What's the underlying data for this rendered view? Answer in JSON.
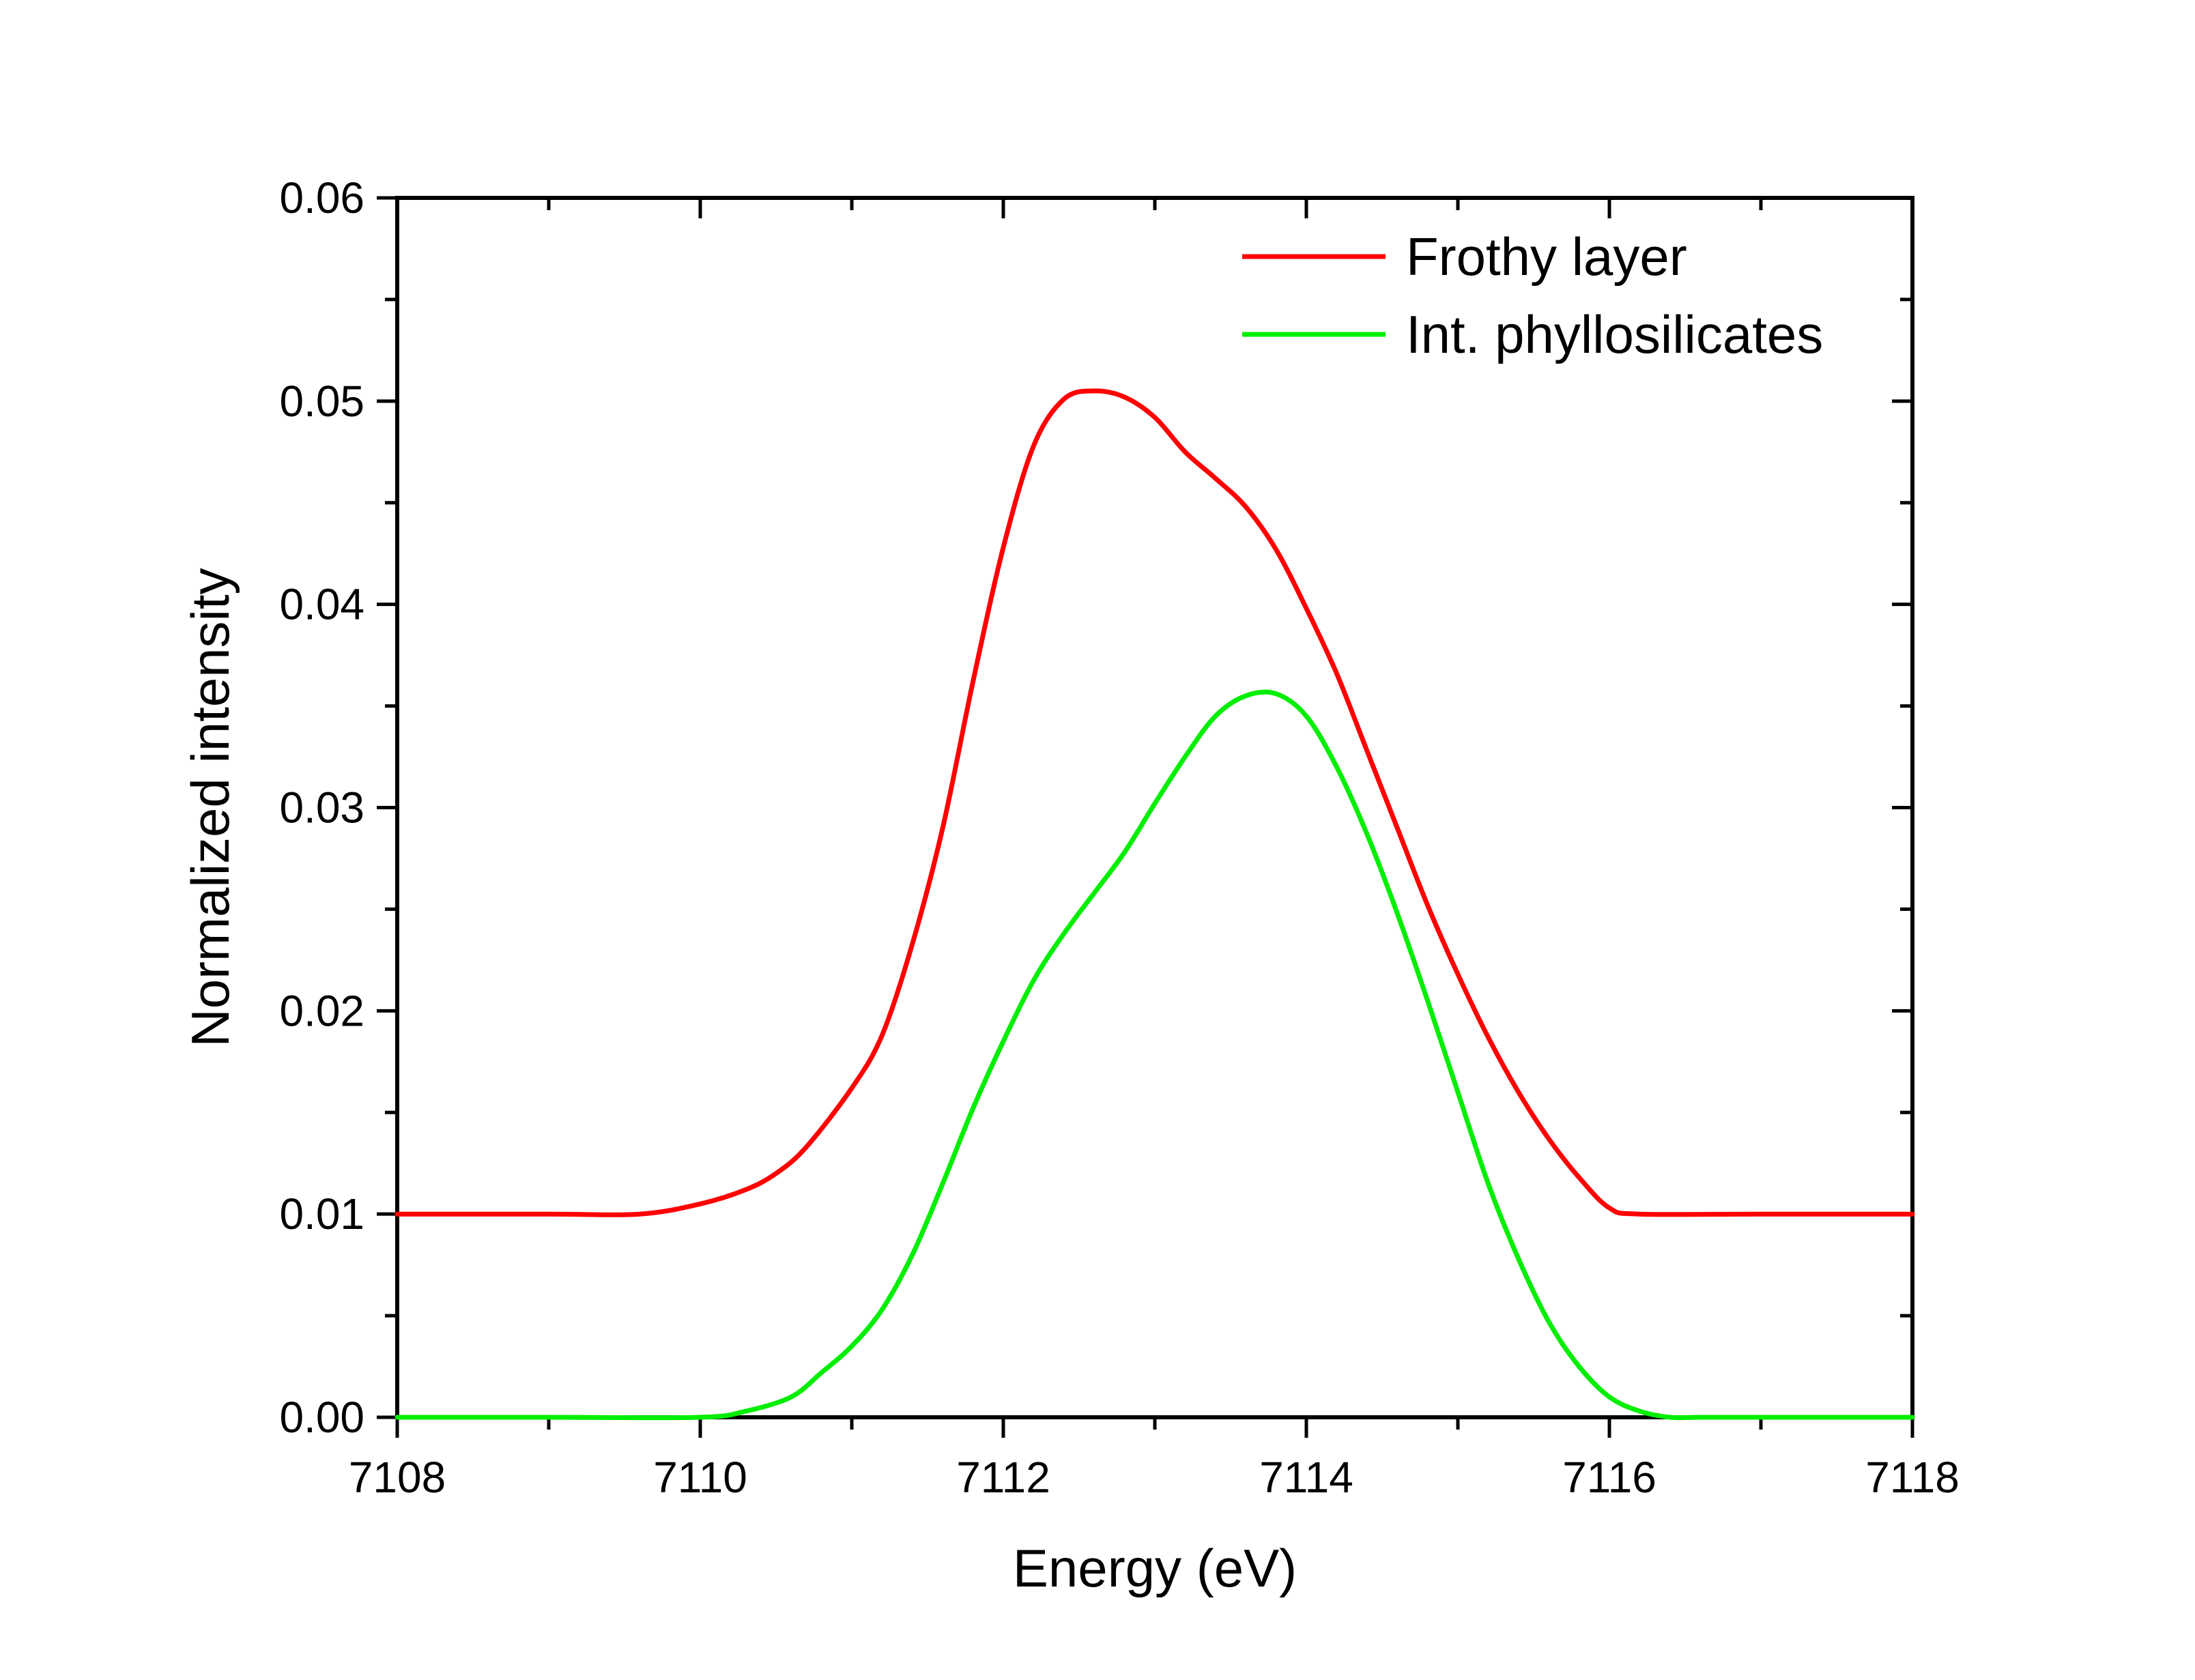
{
  "chart_data": {
    "type": "line",
    "xlabel": "Energy (eV)",
    "ylabel": "Normalized intensity",
    "xlim": [
      7108,
      7118
    ],
    "ylim": [
      0.0,
      0.06
    ],
    "xticks": [
      7108,
      7110,
      7112,
      7114,
      7116,
      7118
    ],
    "xtick_labels": [
      "7108",
      "7110",
      "7112",
      "7114",
      "7116",
      "7118"
    ],
    "yticks": [
      0.0,
      0.01,
      0.02,
      0.03,
      0.04,
      0.05,
      0.06
    ],
    "ytick_labels": [
      "0.00",
      "0.01",
      "0.02",
      "0.03",
      "0.04",
      "0.05",
      "0.06"
    ],
    "grid": false,
    "legend_position": "top-right",
    "series": [
      {
        "name": "Frothy layer",
        "color": "#ff0000",
        "x": [
          7108,
          7109,
          7109.6,
          7110,
          7110.3,
          7110.5,
          7110.7,
          7111,
          7111.2,
          7111.4,
          7111.6,
          7111.8,
          7112,
          7112.2,
          7112.4,
          7112.6,
          7112.8,
          7113,
          7113.2,
          7113.4,
          7113.6,
          7113.8,
          7114,
          7114.2,
          7114.4,
          7114.6,
          7114.8,
          7115,
          7115.2,
          7115.4,
          7115.6,
          7115.8,
          7116,
          7116.2,
          7117,
          7118
        ],
        "y": [
          0.01,
          0.01,
          0.01,
          0.0105,
          0.0112,
          0.012,
          0.0133,
          0.0162,
          0.0188,
          0.0233,
          0.029,
          0.0362,
          0.0428,
          0.0478,
          0.0501,
          0.0505,
          0.0502,
          0.0492,
          0.0475,
          0.0462,
          0.0448,
          0.0427,
          0.0398,
          0.0366,
          0.0328,
          0.029,
          0.0252,
          0.0218,
          0.0187,
          0.016,
          0.0137,
          0.0118,
          0.0103,
          0.01,
          0.01,
          0.01
        ]
      },
      {
        "name": "Int. phyllosilicates",
        "color": "#00ee00",
        "x": [
          7108,
          7109,
          7110,
          7110.3,
          7110.6,
          7110.8,
          7111,
          7111.2,
          7111.4,
          7111.6,
          7111.8,
          7112,
          7112.2,
          7112.4,
          7112.6,
          7112.8,
          7113,
          7113.2,
          7113.4,
          7113.6,
          7113.8,
          7114,
          7114.2,
          7114.4,
          7114.6,
          7114.8,
          7115,
          7115.2,
          7115.4,
          7115.6,
          7115.8,
          7116,
          7116.2,
          7116.4,
          7116.6,
          7117,
          7118
        ],
        "y": [
          0.0,
          0.0,
          0.0,
          0.0003,
          0.001,
          0.0022,
          0.0035,
          0.0053,
          0.008,
          0.0115,
          0.0152,
          0.0185,
          0.0215,
          0.0238,
          0.0258,
          0.0278,
          0.0302,
          0.0325,
          0.0345,
          0.0355,
          0.0356,
          0.0345,
          0.032,
          0.0287,
          0.0248,
          0.0205,
          0.016,
          0.0115,
          0.0078,
          0.0047,
          0.0025,
          0.001,
          0.0003,
          0.0,
          0.0,
          0.0,
          0.0
        ]
      }
    ]
  }
}
